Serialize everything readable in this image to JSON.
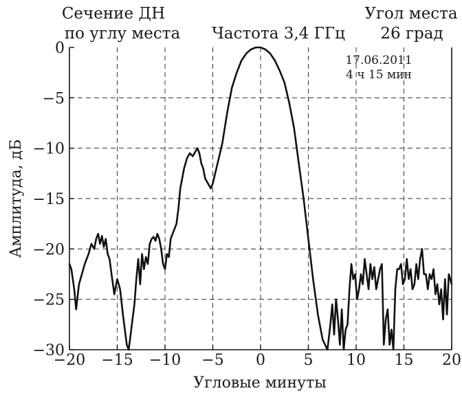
{
  "chart_data": {
    "type": "line",
    "title_left": [
      "Сечение ДН",
      "по углу места"
    ],
    "title_center": "Частота 3,4 ГГц",
    "title_right": [
      "Угол места",
      "26 град"
    ],
    "annotation": [
      "17.06.2011",
      "4 ч 15 мин"
    ],
    "xlabel": "Угловые минуты",
    "ylabel": "Амплитуда, дБ",
    "xlim": [
      -20,
      20
    ],
    "ylim": [
      -30,
      0
    ],
    "xticks": [
      -20,
      -15,
      -10,
      -5,
      0,
      5,
      10,
      15,
      20
    ],
    "yticks": [
      0,
      -5,
      -10,
      -15,
      -20,
      -25,
      -30
    ],
    "xtick_labels": [
      "−20",
      "−15",
      "−10",
      "−5",
      "0",
      "5",
      "10",
      "15",
      "20"
    ],
    "ytick_labels": [
      "0",
      "−5",
      "−10",
      "−15",
      "−20",
      "−25",
      "−30"
    ],
    "grid": true,
    "series": [
      {
        "x": [
          -20.0,
          -19.8,
          -19.5,
          -19.3,
          -19.0,
          -18.7,
          -18.4,
          -18.0,
          -17.7,
          -17.4,
          -17.2,
          -17.0,
          -16.8,
          -16.6,
          -16.4,
          -16.2,
          -16.0,
          -15.8,
          -15.6,
          -15.3,
          -15.0,
          -14.7,
          -14.4,
          -14.2,
          -14.0,
          -13.8,
          -13.6,
          -13.4,
          -13.2,
          -13.0,
          -12.8,
          -12.6,
          -12.4,
          -12.2,
          -12.0,
          -11.8,
          -11.6,
          -11.4,
          -11.2,
          -11.0,
          -10.8,
          -10.6,
          -10.4,
          -10.2,
          -10.0,
          -9.8,
          -9.6,
          -9.4,
          -9.2,
          -9.0,
          -8.8,
          -8.6,
          -8.4,
          -8.2,
          -8.0,
          -7.7,
          -7.4,
          -7.1,
          -6.8,
          -6.6,
          -6.4,
          -6.2,
          -6.0,
          -5.8,
          -5.5,
          -5.2,
          -5.0,
          -4.5,
          -4.0,
          -3.5,
          -3.0,
          -2.5,
          -2.0,
          -1.5,
          -1.0,
          -0.5,
          0.0,
          0.5,
          1.0,
          1.5,
          2.0,
          2.5,
          3.0,
          3.5,
          4.0,
          4.5,
          5.0,
          5.5,
          6.0,
          6.5,
          7.0,
          7.3,
          7.5,
          7.7,
          7.9,
          8.1,
          8.3,
          8.5,
          8.7,
          8.9,
          9.1,
          9.3,
          9.5,
          9.7,
          9.9,
          10.1,
          10.3,
          10.5,
          10.7,
          10.9,
          11.1,
          11.3,
          11.5,
          11.7,
          11.9,
          12.1,
          12.3,
          12.5,
          12.7,
          12.9,
          13.1,
          13.3,
          13.5,
          13.7,
          13.9,
          14.1,
          14.3,
          14.5,
          14.7,
          14.9,
          15.1,
          15.3,
          15.5,
          15.7,
          15.9,
          16.1,
          16.3,
          16.5,
          16.7,
          16.9,
          17.1,
          17.3,
          17.5,
          17.7,
          17.9,
          18.1,
          18.3,
          18.5,
          18.7,
          18.9,
          19.1,
          19.3,
          19.5,
          19.7,
          20.0
        ],
        "y": [
          -21.5,
          -22.0,
          -24.0,
          -26.0,
          -23.5,
          -22.5,
          -21.5,
          -20.5,
          -19.5,
          -20.0,
          -19.0,
          -18.5,
          -19.5,
          -18.7,
          -19.8,
          -19.0,
          -20.5,
          -21.0,
          -22.5,
          -24.5,
          -23.0,
          -24.0,
          -26.5,
          -28.0,
          -29.5,
          -30.0,
          -28.5,
          -27.0,
          -25.5,
          -23.0,
          -21.0,
          -23.5,
          -20.5,
          -22.0,
          -20.8,
          -21.5,
          -19.5,
          -19.0,
          -18.8,
          -19.2,
          -18.5,
          -19.0,
          -20.0,
          -21.5,
          -22.0,
          -20.5,
          -20.8,
          -19.0,
          -18.5,
          -18.0,
          -17.5,
          -16.0,
          -14.0,
          -13.0,
          -12.0,
          -11.0,
          -10.5,
          -10.8,
          -10.3,
          -10.0,
          -10.5,
          -11.5,
          -12.0,
          -13.0,
          -13.5,
          -14.0,
          -13.5,
          -11.5,
          -9.5,
          -6.5,
          -4.0,
          -2.5,
          -1.3,
          -0.6,
          -0.2,
          0.0,
          0.0,
          -0.2,
          -0.6,
          -1.3,
          -2.3,
          -3.5,
          -5.5,
          -8.0,
          -11.5,
          -15.0,
          -19.0,
          -23.0,
          -26.5,
          -29.0,
          -30.0,
          -27.5,
          -25.5,
          -28.5,
          -25.0,
          -27.0,
          -29.5,
          -26.0,
          -30.0,
          -28.0,
          -27.5,
          -24.0,
          -21.5,
          -23.0,
          -22.5,
          -25.0,
          -24.0,
          -22.5,
          -23.5,
          -21.0,
          -22.5,
          -24.0,
          -21.5,
          -23.0,
          -21.8,
          -24.0,
          -23.0,
          -22.0,
          -21.5,
          -29.5,
          -27.0,
          -26.0,
          -29.5,
          -28.0,
          -30.0,
          -24.0,
          -22.0,
          -22.0,
          -21.5,
          -23.5,
          -23.0,
          -21.0,
          -23.0,
          -22.0,
          -24.0,
          -23.5,
          -21.5,
          -23.0,
          -21.0,
          -20.0,
          -22.5,
          -22.5,
          -24.0,
          -22.5,
          -23.0,
          -22.0,
          -24.5,
          -23.5,
          -25.5,
          -24.0,
          -27.0,
          -23.0,
          -26.5,
          -22.5,
          -23.5
        ]
      }
    ]
  }
}
